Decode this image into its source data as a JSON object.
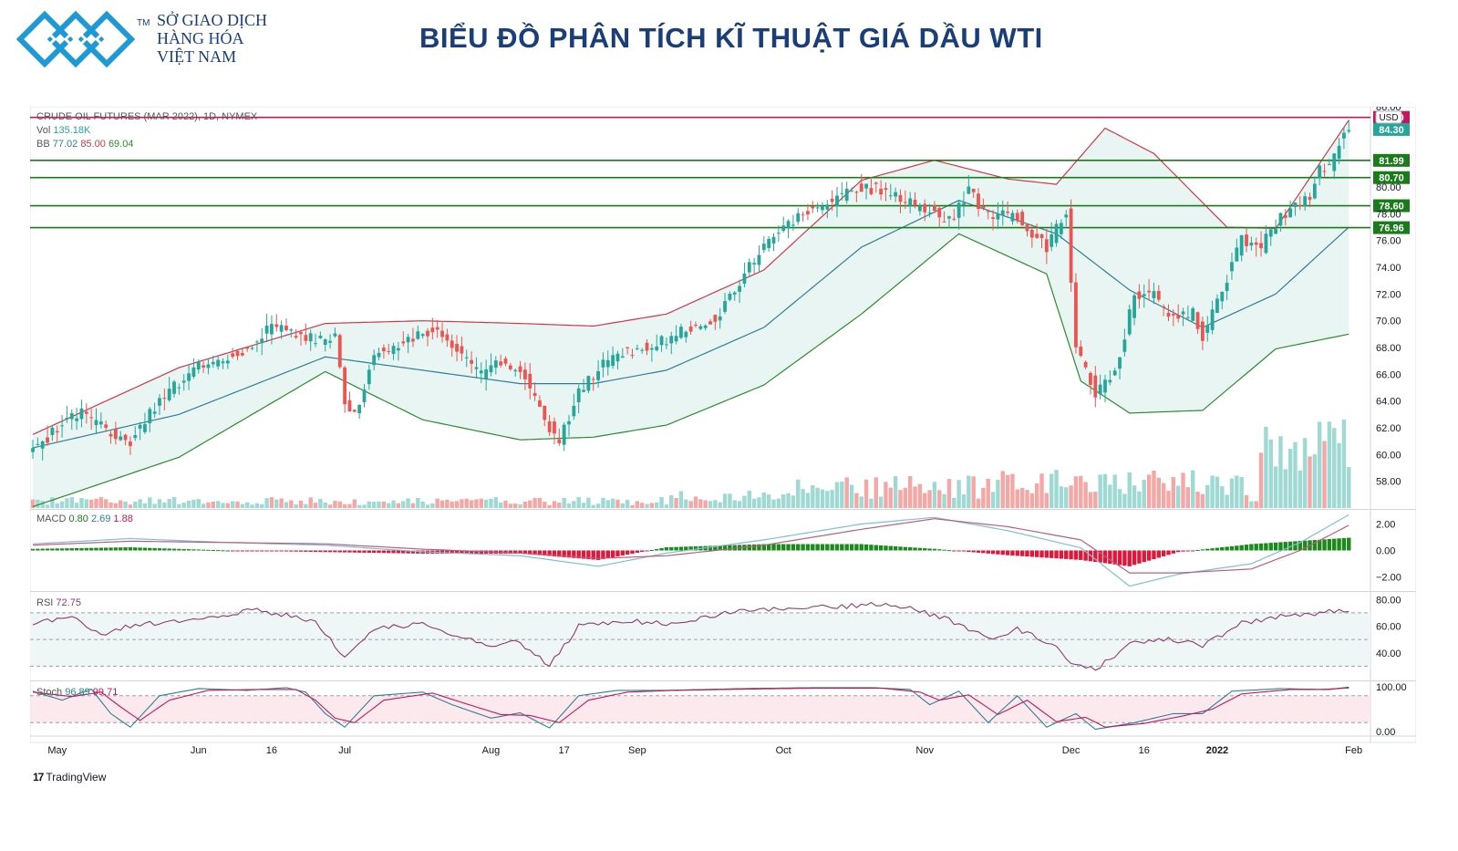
{
  "header": {
    "company_line1": "SỞ GIAO DỊCH",
    "company_line2": "HÀNG HÓA",
    "company_line3": "VIỆT NAM",
    "trademark": "TM",
    "title": "BIỂU ĐỒ PHÂN TÍCH KĨ THUẬT GIÁ DẦU WTI"
  },
  "legend": {
    "symbol": "CRUDE OIL FUTURES (MAR 2022), 1D, NYMEX",
    "vol_label": "Vol",
    "vol_value": "135.18K",
    "bb_label": "BB",
    "bb_basis": "77.02",
    "bb_upper": "85.00",
    "bb_lower": "69.04",
    "macd_label": "MACD",
    "macd_hist": "0.80",
    "macd_line": "2.69",
    "macd_signal": "1.88",
    "rsi_label": "RSI",
    "rsi_value": "72.75",
    "stoch_label": "Stoch",
    "stoch_k": "96.89",
    "stoch_d": "99.71"
  },
  "footer": {
    "brand": "TradingView",
    "brand_mark": "17"
  },
  "chart_data": {
    "type": "candlestick",
    "title": "CRUDE OIL FUTURES (MAR 2022), 1D, NYMEX",
    "currency": "USD",
    "x_labels": [
      "May",
      "Jun",
      "16",
      "Jul",
      "Aug",
      "17",
      "Sep",
      "Oct",
      "Nov",
      "Dec",
      "16",
      "2022",
      "Feb"
    ],
    "price_axis": {
      "ylim": [
        56,
        86
      ],
      "ticks": [
        "58.00",
        "60.00",
        "62.00",
        "64.00",
        "66.00",
        "68.00",
        "70.00",
        "72.00",
        "74.00",
        "76.00",
        "78.00",
        "80.00",
        "86.00"
      ]
    },
    "horizontal_levels": [
      {
        "value": 85.2,
        "label": "85.20",
        "color": "#c2185b"
      },
      {
        "value": 81.99,
        "label": "81.99",
        "color": "#1b7a1b"
      },
      {
        "value": 80.7,
        "label": "80.70",
        "color": "#1b7a1b"
      },
      {
        "value": 78.6,
        "label": "78.60",
        "color": "#1b7a1b"
      },
      {
        "value": 76.96,
        "label": "76.96",
        "color": "#1b7a1b"
      }
    ],
    "last_price": {
      "value": 84.3,
      "label": "84.30",
      "color": "#26a69a"
    },
    "close_anchors": [
      [
        0,
        60.3
      ],
      [
        6,
        62.2
      ],
      [
        10,
        63.1
      ],
      [
        16,
        61.5
      ],
      [
        20,
        61.0
      ],
      [
        26,
        64.0
      ],
      [
        34,
        66.7
      ],
      [
        42,
        67.4
      ],
      [
        48,
        69.3
      ],
      [
        52,
        69.4
      ],
      [
        58,
        68.5
      ],
      [
        62,
        69.0
      ],
      [
        64,
        64.1
      ],
      [
        66,
        63.0
      ],
      [
        70,
        67.5
      ],
      [
        76,
        68.3
      ],
      [
        82,
        69.4
      ],
      [
        86,
        68.0
      ],
      [
        92,
        66.0
      ],
      [
        96,
        66.8
      ],
      [
        100,
        66.5
      ],
      [
        104,
        63.2
      ],
      [
        108,
        61.0
      ],
      [
        112,
        64.5
      ],
      [
        116,
        66.5
      ],
      [
        122,
        67.8
      ],
      [
        128,
        68.2
      ],
      [
        134,
        69.4
      ],
      [
        140,
        70.2
      ],
      [
        146,
        73.5
      ],
      [
        152,
        76.5
      ],
      [
        158,
        78.0
      ],
      [
        164,
        79.0
      ],
      [
        170,
        80.0
      ],
      [
        174,
        79.8
      ],
      [
        178,
        79.0
      ],
      [
        184,
        78.2
      ],
      [
        188,
        77.5
      ],
      [
        192,
        79.6
      ],
      [
        196,
        78.0
      ],
      [
        202,
        77.7
      ],
      [
        208,
        75.5
      ],
      [
        212,
        78.1
      ],
      [
        214,
        67.8
      ],
      [
        216,
        66.5
      ],
      [
        218,
        64.6
      ],
      [
        222,
        66.0
      ],
      [
        226,
        72.0
      ],
      [
        230,
        71.8
      ],
      [
        234,
        70.2
      ],
      [
        238,
        70.5
      ],
      [
        240,
        68.9
      ],
      [
        244,
        72.3
      ],
      [
        248,
        76.2
      ],
      [
        252,
        75.5
      ],
      [
        256,
        77.8
      ],
      [
        260,
        79.0
      ],
      [
        262,
        79.2
      ],
      [
        264,
        81.5
      ],
      [
        266,
        81.6
      ],
      [
        268,
        83.5
      ],
      [
        270,
        84.3
      ]
    ],
    "bollinger": {
      "basis": [
        [
          0,
          60.5
        ],
        [
          30,
          63.0
        ],
        [
          60,
          67.3
        ],
        [
          80,
          66.3
        ],
        [
          100,
          65.3
        ],
        [
          115,
          65.3
        ],
        [
          130,
          66.3
        ],
        [
          150,
          69.5
        ],
        [
          170,
          75.5
        ],
        [
          190,
          79.0
        ],
        [
          210,
          76.5
        ],
        [
          225,
          72.3
        ],
        [
          240,
          69.5
        ],
        [
          255,
          72.0
        ],
        [
          270,
          77.0
        ]
      ],
      "upper": [
        [
          0,
          61.5
        ],
        [
          30,
          66.5
        ],
        [
          60,
          69.8
        ],
        [
          80,
          70.0
        ],
        [
          100,
          69.8
        ],
        [
          115,
          69.6
        ],
        [
          130,
          70.5
        ],
        [
          150,
          73.8
        ],
        [
          170,
          80.5
        ],
        [
          185,
          82.0
        ],
        [
          200,
          80.6
        ],
        [
          210,
          80.2
        ],
        [
          220,
          84.4
        ],
        [
          230,
          82.5
        ],
        [
          245,
          77.0
        ],
        [
          255,
          76.9
        ],
        [
          270,
          85.0
        ]
      ],
      "lower": [
        [
          0,
          56.1
        ],
        [
          30,
          59.8
        ],
        [
          60,
          66.2
        ],
        [
          80,
          62.6
        ],
        [
          100,
          61.1
        ],
        [
          115,
          61.3
        ],
        [
          130,
          62.2
        ],
        [
          150,
          65.2
        ],
        [
          170,
          70.5
        ],
        [
          190,
          76.5
        ],
        [
          208,
          73.5
        ],
        [
          215,
          65.5
        ],
        [
          225,
          63.1
        ],
        [
          240,
          63.3
        ],
        [
          255,
          67.9
        ],
        [
          270,
          69.0
        ]
      ]
    },
    "macd": {
      "ylim": [
        -3,
        3
      ],
      "ticks": [
        "2.00",
        "0.00",
        "−2.00"
      ],
      "macd": [
        [
          0,
          0.5
        ],
        [
          20,
          0.9
        ],
        [
          40,
          0.6
        ],
        [
          60,
          0.4
        ],
        [
          80,
          -0.1
        ],
        [
          100,
          -0.4
        ],
        [
          116,
          -1.2
        ],
        [
          130,
          -0.2
        ],
        [
          150,
          0.8
        ],
        [
          170,
          2.0
        ],
        [
          185,
          2.5
        ],
        [
          200,
          1.5
        ],
        [
          215,
          0.2
        ],
        [
          225,
          -2.7
        ],
        [
          235,
          -1.8
        ],
        [
          250,
          -1.0
        ],
        [
          260,
          0.6
        ],
        [
          270,
          2.7
        ]
      ],
      "signal": [
        [
          0,
          0.4
        ],
        [
          20,
          0.7
        ],
        [
          40,
          0.6
        ],
        [
          60,
          0.5
        ],
        [
          80,
          0.1
        ],
        [
          100,
          -0.2
        ],
        [
          116,
          -0.6
        ],
        [
          130,
          -0.4
        ],
        [
          150,
          0.4
        ],
        [
          170,
          1.6
        ],
        [
          185,
          2.4
        ],
        [
          200,
          1.8
        ],
        [
          215,
          0.8
        ],
        [
          225,
          -1.7
        ],
        [
          235,
          -1.7
        ],
        [
          250,
          -1.4
        ],
        [
          260,
          0.0
        ],
        [
          270,
          1.9
        ]
      ]
    },
    "rsi": {
      "ylim": [
        20,
        85
      ],
      "ticks": [
        "80.00",
        "60.00",
        "40.00"
      ],
      "bands": [
        70,
        50,
        30
      ],
      "line": [
        [
          0,
          62
        ],
        [
          8,
          66
        ],
        [
          14,
          54
        ],
        [
          20,
          60
        ],
        [
          30,
          64
        ],
        [
          46,
          72
        ],
        [
          52,
          68
        ],
        [
          58,
          64
        ],
        [
          64,
          37
        ],
        [
          70,
          58
        ],
        [
          80,
          62
        ],
        [
          86,
          52
        ],
        [
          94,
          46
        ],
        [
          100,
          48
        ],
        [
          106,
          30
        ],
        [
          112,
          60
        ],
        [
          120,
          64
        ],
        [
          130,
          62
        ],
        [
          146,
          72
        ],
        [
          160,
          74
        ],
        [
          172,
          76
        ],
        [
          180,
          74
        ],
        [
          190,
          62
        ],
        [
          196,
          50
        ],
        [
          202,
          58
        ],
        [
          210,
          44
        ],
        [
          214,
          30
        ],
        [
          218,
          28
        ],
        [
          226,
          48
        ],
        [
          234,
          50
        ],
        [
          240,
          46
        ],
        [
          248,
          62
        ],
        [
          256,
          68
        ],
        [
          264,
          70
        ],
        [
          270,
          73
        ]
      ]
    },
    "stoch": {
      "ylim": [
        -10,
        110
      ],
      "ticks": [
        "100.00",
        "0.00"
      ],
      "bands": [
        80,
        20
      ],
      "k": [
        [
          0,
          90
        ],
        [
          6,
          70
        ],
        [
          12,
          95
        ],
        [
          16,
          40
        ],
        [
          20,
          10
        ],
        [
          26,
          80
        ],
        [
          34,
          96
        ],
        [
          44,
          92
        ],
        [
          52,
          98
        ],
        [
          56,
          88
        ],
        [
          60,
          40
        ],
        [
          64,
          10
        ],
        [
          70,
          80
        ],
        [
          80,
          88
        ],
        [
          86,
          60
        ],
        [
          94,
          30
        ],
        [
          100,
          42
        ],
        [
          106,
          8
        ],
        [
          112,
          80
        ],
        [
          120,
          92
        ],
        [
          130,
          92
        ],
        [
          146,
          96
        ],
        [
          160,
          98
        ],
        [
          172,
          98
        ],
        [
          180,
          94
        ],
        [
          184,
          60
        ],
        [
          190,
          90
        ],
        [
          196,
          20
        ],
        [
          202,
          80
        ],
        [
          208,
          10
        ],
        [
          214,
          40
        ],
        [
          218,
          5
        ],
        [
          226,
          20
        ],
        [
          234,
          40
        ],
        [
          240,
          40
        ],
        [
          246,
          90
        ],
        [
          256,
          96
        ],
        [
          264,
          94
        ],
        [
          270,
          97
        ]
      ],
      "d": [
        [
          0,
          88
        ],
        [
          8,
          78
        ],
        [
          14,
          88
        ],
        [
          18,
          55
        ],
        [
          22,
          25
        ],
        [
          28,
          70
        ],
        [
          36,
          92
        ],
        [
          46,
          94
        ],
        [
          54,
          94
        ],
        [
          58,
          70
        ],
        [
          62,
          30
        ],
        [
          66,
          20
        ],
        [
          72,
          70
        ],
        [
          82,
          86
        ],
        [
          88,
          65
        ],
        [
          96,
          38
        ],
        [
          102,
          36
        ],
        [
          108,
          20
        ],
        [
          114,
          70
        ],
        [
          122,
          88
        ],
        [
          132,
          92
        ],
        [
          148,
          95
        ],
        [
          162,
          97
        ],
        [
          174,
          97
        ],
        [
          182,
          88
        ],
        [
          186,
          70
        ],
        [
          192,
          82
        ],
        [
          198,
          38
        ],
        [
          204,
          70
        ],
        [
          210,
          22
        ],
        [
          216,
          32
        ],
        [
          220,
          10
        ],
        [
          228,
          18
        ],
        [
          236,
          35
        ],
        [
          242,
          50
        ],
        [
          248,
          84
        ],
        [
          258,
          94
        ],
        [
          266,
          94
        ],
        [
          270,
          99
        ]
      ]
    }
  },
  "colors": {
    "up": "#26a69a",
    "down": "#ef5350",
    "bb_band": "#e8f5f3"
  }
}
